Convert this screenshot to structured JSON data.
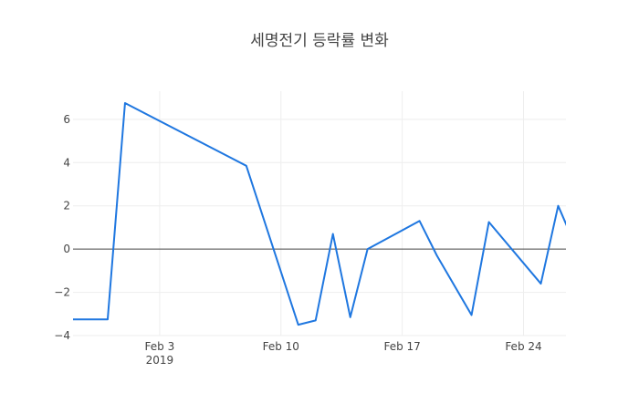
{
  "chart_data": {
    "type": "line",
    "title": "세명전기 등락률 변화",
    "xlabel": "",
    "ylabel": "",
    "x_axis": {
      "type": "date",
      "range": [
        "2019-01-29",
        "2019-02-26"
      ],
      "ticks": [
        {
          "value": "2019-02-03",
          "label": "Feb 3",
          "sublabel": "2019"
        },
        {
          "value": "2019-02-10",
          "label": "Feb 10",
          "sublabel": ""
        },
        {
          "value": "2019-02-17",
          "label": "Feb 17",
          "sublabel": ""
        },
        {
          "value": "2019-02-24",
          "label": "Feb 24",
          "sublabel": ""
        }
      ]
    },
    "y_axis": {
      "range": [
        -4,
        7.3
      ],
      "ticks": [
        {
          "value": -4,
          "label": "−4"
        },
        {
          "value": -2,
          "label": "−2"
        },
        {
          "value": 0,
          "label": "0"
        },
        {
          "value": 2,
          "label": "2"
        },
        {
          "value": 4,
          "label": "4"
        },
        {
          "value": 6,
          "label": "6"
        }
      ]
    },
    "grid": true,
    "zero_line": true,
    "series": [
      {
        "color": "#1f77e0",
        "points": [
          {
            "x": "2019-01-29",
            "y": -3.25
          },
          {
            "x": "2019-01-31",
            "y": -3.25
          },
          {
            "x": "2019-02-01",
            "y": 6.75
          },
          {
            "x": "2019-02-08",
            "y": 3.85
          },
          {
            "x": "2019-02-11",
            "y": -3.5
          },
          {
            "x": "2019-02-12",
            "y": -3.3
          },
          {
            "x": "2019-02-13",
            "y": 0.7
          },
          {
            "x": "2019-02-14",
            "y": -3.15
          },
          {
            "x": "2019-02-15",
            "y": 0.0
          },
          {
            "x": "2019-02-18",
            "y": 1.3
          },
          {
            "x": "2019-02-19",
            "y": -0.3
          },
          {
            "x": "2019-02-21",
            "y": -3.05
          },
          {
            "x": "2019-02-22",
            "y": 1.25
          },
          {
            "x": "2019-02-25",
            "y": -1.6
          },
          {
            "x": "2019-02-26",
            "y": 2.0
          },
          {
            "x": "2019-02-27",
            "y": 0.15
          }
        ]
      }
    ]
  }
}
